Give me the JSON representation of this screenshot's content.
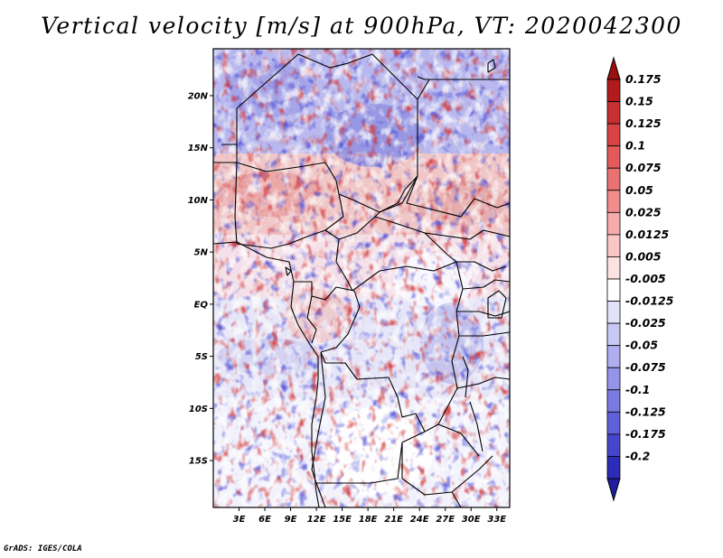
{
  "title": "Vertical velocity [m/s] at 900hPa, VT: 2020042300",
  "credit": "GrADS: IGES/COLA",
  "map": {
    "variable": "Vertical velocity",
    "units": "m/s",
    "level": "900hPa",
    "valid_time": "2020042300",
    "lon_range": [
      0,
      34.5
    ],
    "lat_range": [
      -19.5,
      24.5
    ],
    "lon_ticks": [
      {
        "value": 3,
        "label": "3E"
      },
      {
        "value": 6,
        "label": "6E"
      },
      {
        "value": 9,
        "label": "9E"
      },
      {
        "value": 12,
        "label": "12E"
      },
      {
        "value": 15,
        "label": "15E"
      },
      {
        "value": 18,
        "label": "18E"
      },
      {
        "value": 21,
        "label": "21E"
      },
      {
        "value": 24,
        "label": "24E"
      },
      {
        "value": 27,
        "label": "27E"
      },
      {
        "value": 30,
        "label": "30E"
      },
      {
        "value": 33,
        "label": "33E"
      }
    ],
    "lat_ticks": [
      {
        "value": 20,
        "label": "20N"
      },
      {
        "value": 15,
        "label": "15N"
      },
      {
        "value": 10,
        "label": "10N"
      },
      {
        "value": 5,
        "label": "5N"
      },
      {
        "value": 0,
        "label": "EQ"
      },
      {
        "value": -5,
        "label": "5S"
      },
      {
        "value": -10,
        "label": "10S"
      },
      {
        "value": -15,
        "label": "15S"
      }
    ]
  },
  "colorbar": {
    "levels": [
      {
        "label": "0.175",
        "color": "#b01c1c"
      },
      {
        "label": "0.15",
        "color": "#c63030"
      },
      {
        "label": "0.125",
        "color": "#d84444"
      },
      {
        "label": "0.1",
        "color": "#e25a5a"
      },
      {
        "label": "0.075",
        "color": "#ea7272"
      },
      {
        "label": "0.05",
        "color": "#f08c8c"
      },
      {
        "label": "0.025",
        "color": "#f6aaaa"
      },
      {
        "label": "0.0125",
        "color": "#fac6c6"
      },
      {
        "label": "0.005",
        "color": "#fde2e2"
      },
      {
        "label": "-0.005",
        "color": "#ffffff"
      },
      {
        "label": "-0.0125",
        "color": "#e2e2fa"
      },
      {
        "label": "-0.025",
        "color": "#c8c8f6"
      },
      {
        "label": "-0.05",
        "color": "#aeaef0"
      },
      {
        "label": "-0.075",
        "color": "#9494ea"
      },
      {
        "label": "-0.1",
        "color": "#7a7ae2"
      },
      {
        "label": "-0.125",
        "color": "#6060da"
      },
      {
        "label": "-0.175",
        "color": "#4646cc"
      },
      {
        "label": "-0.2",
        "color": "#2c2cb8"
      }
    ],
    "over_color": "#9a1010",
    "under_color": "#1e1e9e"
  }
}
